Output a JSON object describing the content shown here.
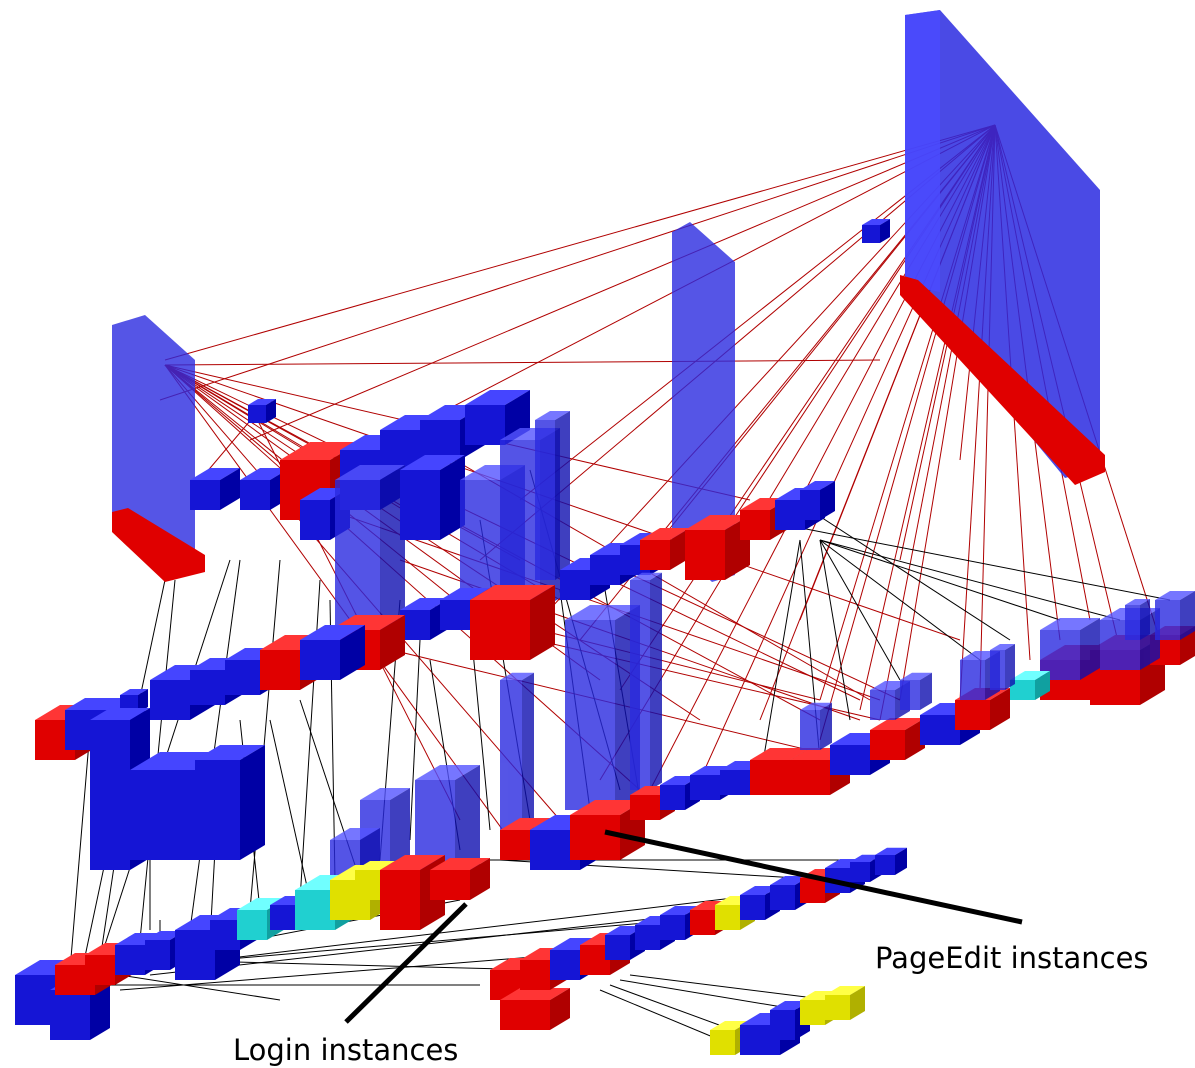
{
  "annotations": [
    {
      "label": "PageEdit instances"
    },
    {
      "label": "Login instances"
    }
  ]
}
